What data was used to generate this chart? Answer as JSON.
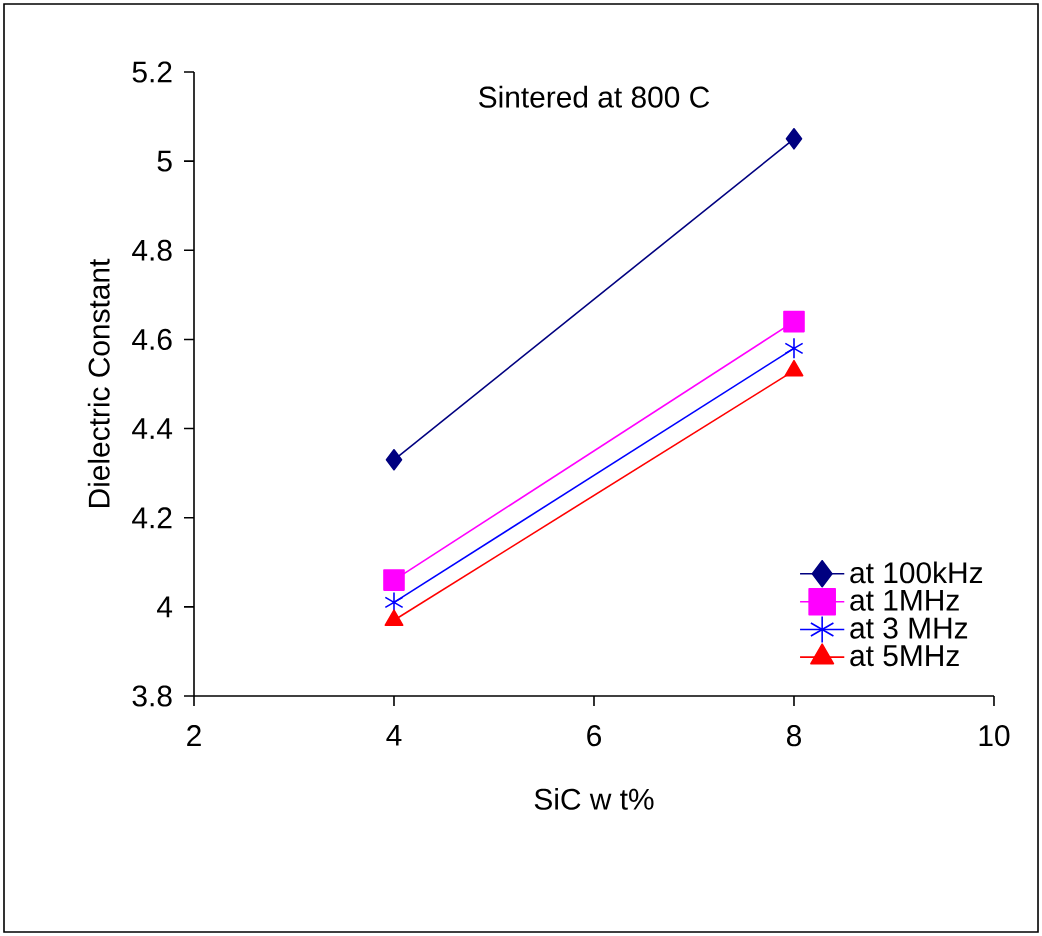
{
  "chart_data": {
    "type": "line",
    "title": "Sintered at 800 C",
    "xlabel": "SiC w t%",
    "ylabel": "Dielectric Constant",
    "x": [
      4,
      8
    ],
    "series": [
      {
        "name": "at 100kHz",
        "color": "#000080",
        "marker": "diamond",
        "values": [
          4.33,
          5.05
        ]
      },
      {
        "name": "at 1MHz",
        "color": "#ff00ff",
        "marker": "square",
        "values": [
          4.06,
          4.64
        ]
      },
      {
        "name": "at 3 MHz",
        "color": "#0000ff",
        "marker": "cross",
        "values": [
          4.01,
          4.58
        ]
      },
      {
        "name": "at 5MHz",
        "color": "#ff0000",
        "marker": "triangle",
        "values": [
          3.97,
          4.53
        ]
      }
    ],
    "xlim": [
      2,
      10
    ],
    "xticks": [
      2,
      4,
      6,
      8,
      10
    ],
    "ylim": [
      3.8,
      5.2
    ],
    "yticks": [
      3.8,
      4,
      4.2,
      4.4,
      4.6,
      4.8,
      5,
      5.2
    ],
    "grid": false,
    "legend": "bottom right",
    "line_style": "solid"
  }
}
